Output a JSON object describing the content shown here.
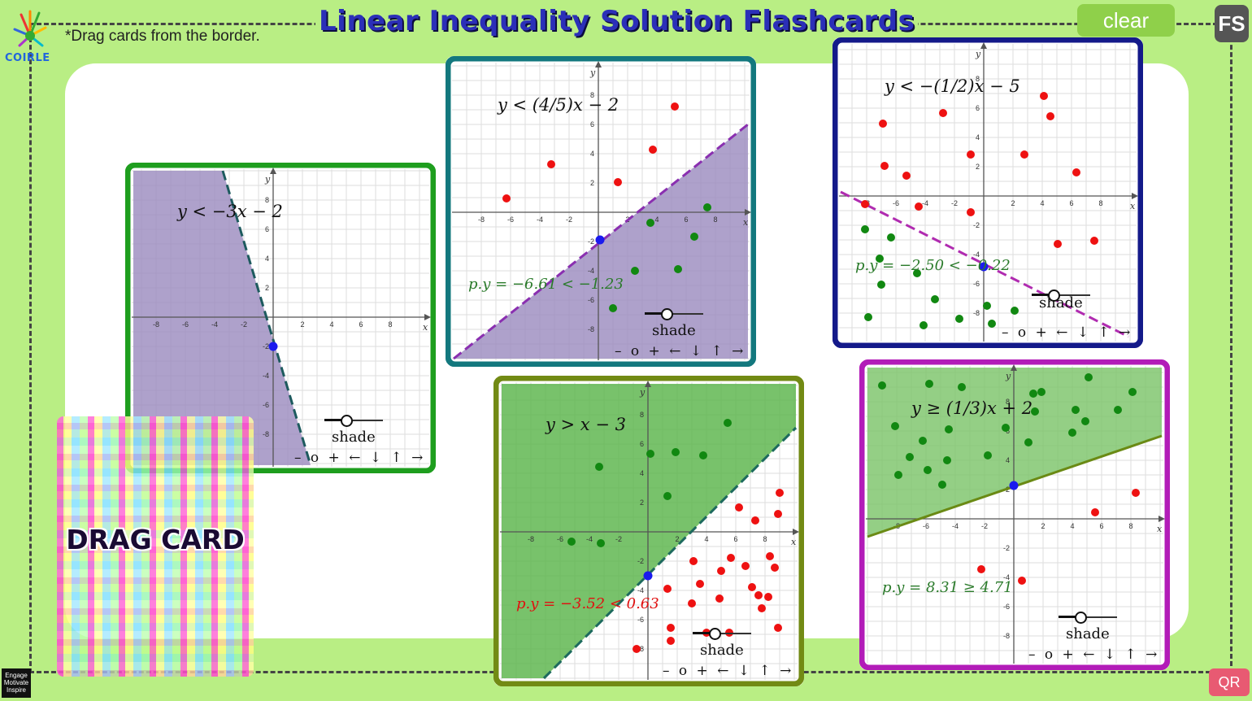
{
  "title": "Linear Inequality Solution Flashcards",
  "hint": "*Drag cards from the border.",
  "logo": {
    "icon": "colorful-splash-icon",
    "text": "COIRLE"
  },
  "buttons": {
    "clear": "clear",
    "fs": "FS",
    "qr": "QR"
  },
  "emi_badge": "Engage Motivate Inspire",
  "drag_card": {
    "label": "DRAG CARD"
  },
  "control_labels": {
    "shade": "shade",
    "controls": "– o + ← ↓ ↑ →"
  },
  "axis_labels": {
    "x": "x",
    "y": "y"
  },
  "cards": [
    {
      "id": "card1",
      "color": "#1e9e1e",
      "inequality": "y < −3x − 2",
      "pvalue": "",
      "pcolor": "#2a7a2a"
    },
    {
      "id": "card2",
      "color": "#13787e",
      "inequality": "y < (4/5)x − 2",
      "pvalue": "p.y = −6.61 < −1.23",
      "pcolor": "#2a7a2a"
    },
    {
      "id": "card3",
      "color": "#141a8a",
      "inequality": "y < −(1/2)x − 5",
      "pvalue": "p.y = −2.50 < −0.22",
      "pcolor": "#2a7a2a"
    },
    {
      "id": "card4",
      "color": "#728a14",
      "inequality": "y > x − 3",
      "pvalue": "p.y = −3.52 < 0.63",
      "pcolor": "#e01010"
    },
    {
      "id": "card5",
      "color": "#b21cb8",
      "inequality": "y ≥ (1/3)x + 2",
      "pvalue": "p.y = 8.31 ≥ 4.71",
      "pcolor": "#2a7a2a"
    }
  ],
  "tick_labels": [
    "-8",
    "-6",
    "-4",
    "-2",
    "2",
    "4",
    "6",
    "8"
  ],
  "colors": {
    "background": "#b9ee84",
    "purple_shade": "#9c8cc0",
    "green_shade": "#4caf3c",
    "red_point": "#ee1111",
    "green_point": "#118811",
    "blue_point": "#1a1aee"
  }
}
